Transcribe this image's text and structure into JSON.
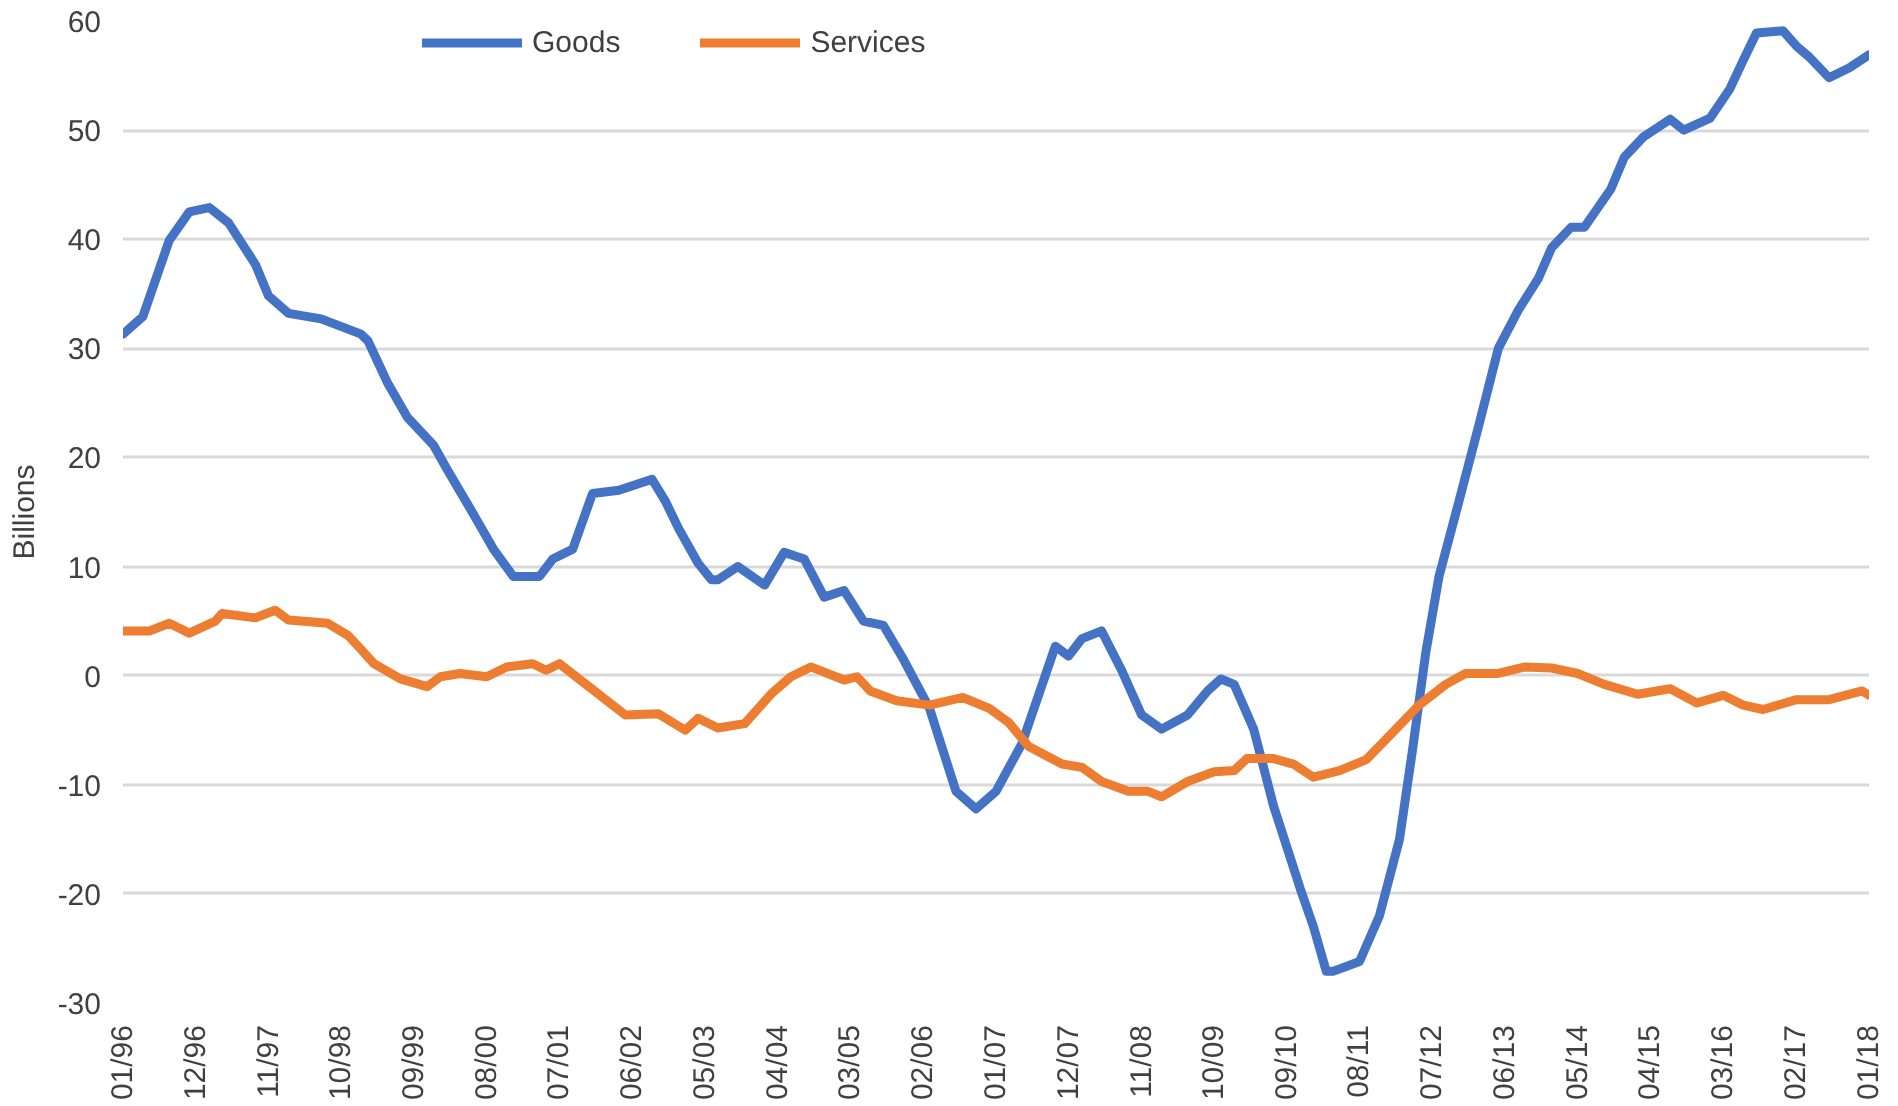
{
  "chart_data": {
    "type": "line",
    "ylabel": "Billions",
    "ylim": [
      -30,
      60
    ],
    "yticks": [
      -30,
      -20,
      -10,
      0,
      10,
      20,
      30,
      40,
      50,
      60
    ],
    "xlim": [
      "1996-01",
      "2018-01"
    ],
    "xticks": [
      {
        "value": "1996-01",
        "label": "01/96"
      },
      {
        "value": "1996-12",
        "label": "12/96"
      },
      {
        "value": "1997-11",
        "label": "11/97"
      },
      {
        "value": "1998-10",
        "label": "10/98"
      },
      {
        "value": "1999-09",
        "label": "09/99"
      },
      {
        "value": "2000-08",
        "label": "08/00"
      },
      {
        "value": "2001-07",
        "label": "07/01"
      },
      {
        "value": "2002-06",
        "label": "06/02"
      },
      {
        "value": "2003-05",
        "label": "05/03"
      },
      {
        "value": "2004-04",
        "label": "04/04"
      },
      {
        "value": "2005-03",
        "label": "03/05"
      },
      {
        "value": "2006-02",
        "label": "02/06"
      },
      {
        "value": "2007-01",
        "label": "01/07"
      },
      {
        "value": "2007-12",
        "label": "12/07"
      },
      {
        "value": "2008-11",
        "label": "11/08"
      },
      {
        "value": "2009-10",
        "label": "10/09"
      },
      {
        "value": "2010-09",
        "label": "09/10"
      },
      {
        "value": "2011-08",
        "label": "08/11"
      },
      {
        "value": "2012-07",
        "label": "07/12"
      },
      {
        "value": "2013-06",
        "label": "06/13"
      },
      {
        "value": "2014-05",
        "label": "05/14"
      },
      {
        "value": "2015-04",
        "label": "04/15"
      },
      {
        "value": "2016-03",
        "label": "03/16"
      },
      {
        "value": "2017-02",
        "label": "02/17"
      },
      {
        "value": "2018-01",
        "label": "01/18"
      }
    ],
    "grid": "y",
    "legend": "top",
    "marker": "none",
    "line_style": "solid",
    "series": [
      {
        "name": "Goods",
        "color": "#4472c4",
        "x": [
          "1996-01",
          "1996-04",
          "1996-08",
          "1996-11",
          "1997-02",
          "1997-05",
          "1997-09",
          "1997-11",
          "1998-02",
          "1998-07",
          "1999-01",
          "1999-02",
          "1999-05",
          "1999-08",
          "1999-12",
          "2000-02",
          "2000-06",
          "2000-09",
          "2000-12",
          "2001-04",
          "2001-06",
          "2001-09",
          "2001-12",
          "2002-04",
          "2002-09",
          "2002-11",
          "2003-01",
          "2003-04",
          "2003-06",
          "2003-07",
          "2003-10",
          "2004-02",
          "2004-05",
          "2004-08",
          "2004-11",
          "2005-02",
          "2005-05",
          "2005-08",
          "2005-11",
          "2006-03",
          "2006-07",
          "2006-10",
          "2007-01",
          "2007-05",
          "2007-10",
          "2007-12",
          "2008-02",
          "2008-05",
          "2008-08",
          "2008-11",
          "2009-02",
          "2009-06",
          "2009-09",
          "2009-11",
          "2010-01",
          "2010-04",
          "2010-07",
          "2010-11",
          "2011-01",
          "2011-03",
          "2011-04",
          "2011-08",
          "2011-11",
          "2012-02",
          "2012-04",
          "2012-06",
          "2012-08",
          "2012-11",
          "2013-02",
          "2013-05",
          "2013-08",
          "2013-11",
          "2014-01",
          "2014-04",
          "2014-06",
          "2014-10",
          "2014-12",
          "2015-03",
          "2015-07",
          "2015-09",
          "2016-01",
          "2016-04",
          "2016-06",
          "2016-08",
          "2016-12",
          "2017-02",
          "2017-04",
          "2017-07",
          "2017-10",
          "2018-01"
        ],
        "values": [
          31.3,
          32.9,
          39.9,
          42.5,
          42.9,
          41.5,
          37.7,
          34.8,
          33.2,
          32.7,
          31.3,
          30.7,
          26.9,
          23.7,
          21.1,
          18.9,
          14.8,
          11.6,
          9.1,
          9.1,
          10.7,
          11.6,
          16.7,
          17,
          18,
          16,
          13.5,
          10.3,
          8.8,
          8.8,
          10,
          8.3,
          11.3,
          10.7,
          7.2,
          7.8,
          5,
          4.6,
          1.5,
          -3,
          -10.6,
          -12.2,
          -10.6,
          -6.2,
          2.7,
          1.8,
          3.4,
          4.1,
          0.5,
          -3.6,
          -4.9,
          -3.6,
          -1.4,
          -0.3,
          -0.8,
          -4.9,
          -11.9,
          -19.5,
          -23,
          -27.1,
          -27.1,
          -26.2,
          -22,
          -15,
          -6.8,
          2.1,
          9.1,
          16,
          23,
          30,
          33.5,
          36.4,
          39.2,
          41.1,
          41.1,
          44.6,
          47.5,
          49.4,
          51,
          50,
          51.1,
          53.8,
          56.4,
          58.9,
          59.1,
          57.7,
          56.7,
          54.8,
          55.7,
          56.9
        ]
      },
      {
        "name": "Services",
        "color": "#ed7d31",
        "x": [
          "1996-01",
          "1996-05",
          "1996-08",
          "1996-11",
          "1997-03",
          "1997-04",
          "1997-09",
          "1997-12",
          "1998-02",
          "1998-08",
          "1998-11",
          "1999-01",
          "1999-03",
          "1999-07",
          "1999-11",
          "2000-01",
          "2000-04",
          "2000-08",
          "2000-11",
          "2001-03",
          "2001-05",
          "2001-07",
          "2001-11",
          "2002-05",
          "2002-10",
          "2003-02",
          "2003-04",
          "2003-07",
          "2003-11",
          "2004-03",
          "2004-06",
          "2004-09",
          "2005-02",
          "2005-04",
          "2005-06",
          "2005-10",
          "2006-03",
          "2006-08",
          "2006-12",
          "2007-03",
          "2007-06",
          "2007-11",
          "2008-02",
          "2008-05",
          "2008-09",
          "2008-12",
          "2009-02",
          "2009-06",
          "2009-10",
          "2010-01",
          "2010-03",
          "2010-07",
          "2010-10",
          "2011-01",
          "2011-05",
          "2011-09",
          "2012-01",
          "2012-05",
          "2012-09",
          "2012-12",
          "2013-05",
          "2013-09",
          "2014-01",
          "2014-05",
          "2014-09",
          "2015-02",
          "2015-07",
          "2015-11",
          "2016-03",
          "2016-06",
          "2016-09",
          "2017-02",
          "2017-07",
          "2017-12",
          "2018-01"
        ],
        "values": [
          4.1,
          4.1,
          4.8,
          3.9,
          5,
          5.7,
          5.3,
          6,
          5.1,
          4.8,
          3.7,
          2.4,
          1.1,
          -0.3,
          -1,
          -0.1,
          0.2,
          -0.1,
          0.8,
          1.1,
          0.5,
          1.1,
          -0.8,
          -3.6,
          -3.5,
          -5,
          -3.9,
          -4.8,
          -4.4,
          -1.7,
          -0.1,
          0.8,
          -0.4,
          -0.1,
          -1.4,
          -2.3,
          -2.7,
          -2,
          -3,
          -4.3,
          -6.5,
          -8.1,
          -8.4,
          -9.7,
          -10.6,
          -10.6,
          -11.1,
          -9.7,
          -8.8,
          -8.7,
          -7.6,
          -7.6,
          -8.1,
          -9.3,
          -8.7,
          -7.7,
          -5.2,
          -2.7,
          -0.8,
          0.2,
          0.2,
          0.8,
          0.7,
          0.2,
          -0.8,
          -1.7,
          -1.2,
          -2.5,
          -1.8,
          -2.7,
          -3.1,
          -2.2,
          -2.2,
          -1.4,
          -1.8
        ]
      }
    ]
  }
}
